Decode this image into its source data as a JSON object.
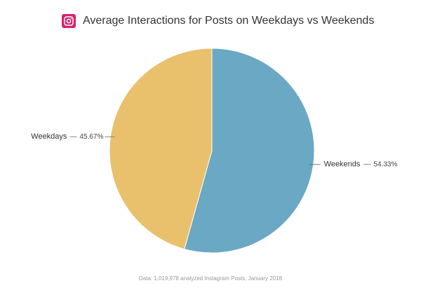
{
  "chart_data": {
    "type": "pie",
    "title": "Average Interactions for Posts on Weekdays vs Weekends",
    "categories": [
      "Weekends",
      "Weekdays"
    ],
    "values": [
      54.33,
      45.67
    ],
    "value_labels": [
      "54.33%",
      "45.67%"
    ],
    "colors": [
      "#6aa8c4",
      "#e9c06b"
    ],
    "footnote": "Data: 1,019,978 analyzed Instagram Posts, January 2018"
  }
}
